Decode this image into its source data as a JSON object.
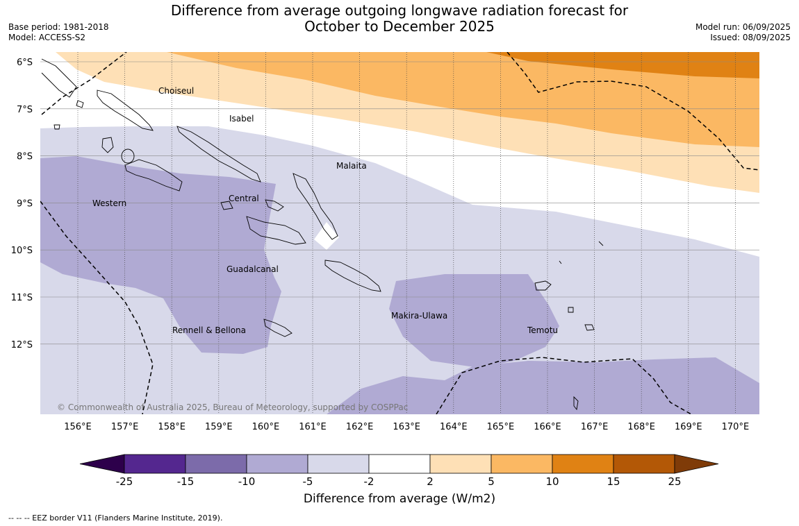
{
  "header": {
    "title_line1": "Difference from average outgoing longwave radiation forecast for",
    "title_line2": "October to December 2025",
    "base_period": "Base period: 1981-2018",
    "model": "Model: ACCESS-S2",
    "model_run": "Model run: 06/09/2025",
    "issued": "Issued: 08/09/2025"
  },
  "map": {
    "lat_labels": [
      "6°S",
      "7°S",
      "8°S",
      "9°S",
      "10°S",
      "11°S",
      "12°S"
    ],
    "lon_labels": [
      "156°E",
      "157°E",
      "158°E",
      "159°E",
      "160°E",
      "161°E",
      "162°E",
      "163°E",
      "164°E",
      "165°E",
      "166°E",
      "167°E",
      "168°E",
      "169°E",
      "170°E"
    ],
    "province_labels": [
      "Choiseul",
      "Isabel",
      "Malaita",
      "Western",
      "Central",
      "Guadalcanal",
      "Rennell & Bellona",
      "Makira-Ulawa",
      "Temotu"
    ],
    "copyright": "© Commonwealth of Australia 2025, Bureau of Meteorology, supported by COSPPac"
  },
  "colorbar": {
    "tick_labels": [
      "-25",
      "-15",
      "-10",
      "-5",
      "-2",
      "2",
      "5",
      "10",
      "15",
      "25"
    ],
    "colors": [
      "#54278f",
      "#7c6baa",
      "#b0aad3",
      "#d8d9ea",
      "#ffffff",
      "#fee0b6",
      "#fbb863",
      "#e08214",
      "#b35806"
    ],
    "low_extend_color": "#2d004b",
    "high_extend_color": "#7f3b08",
    "title": "Difference from average (W/m2)"
  },
  "footer": {
    "eez_note": "--  --  -- EEZ border V11 (Flanders Marine Institute, 2019)."
  }
}
